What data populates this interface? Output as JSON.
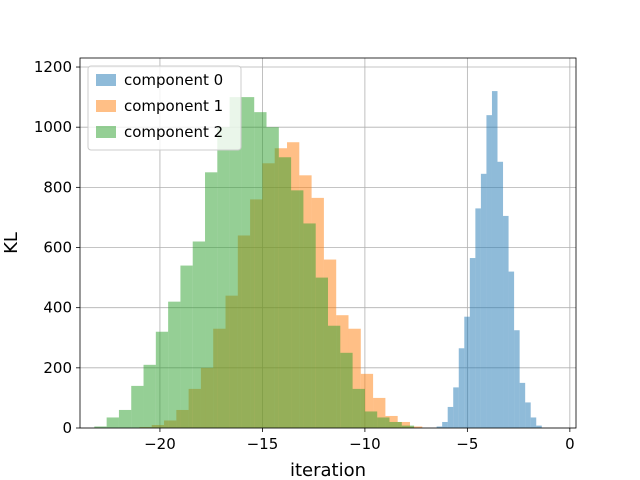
{
  "chart_data": {
    "type": "histogram",
    "xlabel": "iteration",
    "ylabel": "KL",
    "xlim": [
      -23.9,
      0.3
    ],
    "ylim": [
      0,
      1230
    ],
    "xticks": [
      -20,
      -15,
      -10,
      -5,
      0
    ],
    "xtick_labels": [
      "−20",
      "−15",
      "−10",
      "−5",
      "0"
    ],
    "yticks": [
      0,
      200,
      400,
      600,
      800,
      1000,
      1200
    ],
    "ytick_labels": [
      "0",
      "200",
      "400",
      "600",
      "800",
      "1000",
      "1200"
    ],
    "grid": true,
    "legend_position": "top-left",
    "bar_alpha": 0.5,
    "series": [
      {
        "name": "component 0",
        "color": "#1f77b4",
        "bin_width": 0.27,
        "bins": [
          {
            "x0": -6.5,
            "count": 5
          },
          {
            "x0": -6.23,
            "count": 20
          },
          {
            "x0": -5.96,
            "count": 70
          },
          {
            "x0": -5.69,
            "count": 135
          },
          {
            "x0": -5.42,
            "count": 265
          },
          {
            "x0": -5.15,
            "count": 370
          },
          {
            "x0": -4.88,
            "count": 565
          },
          {
            "x0": -4.61,
            "count": 730
          },
          {
            "x0": -4.34,
            "count": 845
          },
          {
            "x0": -4.07,
            "count": 1040
          },
          {
            "x0": -3.8,
            "count": 1120
          },
          {
            "x0": -3.53,
            "count": 885
          },
          {
            "x0": -3.26,
            "count": 705
          },
          {
            "x0": -2.99,
            "count": 520
          },
          {
            "x0": -2.72,
            "count": 325
          },
          {
            "x0": -2.45,
            "count": 150
          },
          {
            "x0": -2.18,
            "count": 85
          },
          {
            "x0": -1.91,
            "count": 35
          },
          {
            "x0": -1.64,
            "count": 8
          }
        ]
      },
      {
        "name": "component 1",
        "color": "#ff7f0e",
        "bin_width": 0.6,
        "bins": [
          {
            "x0": -21.0,
            "count": 3
          },
          {
            "x0": -20.4,
            "count": 10
          },
          {
            "x0": -19.8,
            "count": 25
          },
          {
            "x0": -19.2,
            "count": 60
          },
          {
            "x0": -18.6,
            "count": 130
          },
          {
            "x0": -18.0,
            "count": 200
          },
          {
            "x0": -17.4,
            "count": 330
          },
          {
            "x0": -16.8,
            "count": 440
          },
          {
            "x0": -16.2,
            "count": 640
          },
          {
            "x0": -15.6,
            "count": 760
          },
          {
            "x0": -15.0,
            "count": 880
          },
          {
            "x0": -14.4,
            "count": 930
          },
          {
            "x0": -13.8,
            "count": 950
          },
          {
            "x0": -13.2,
            "count": 840
          },
          {
            "x0": -12.6,
            "count": 765
          },
          {
            "x0": -12.0,
            "count": 560
          },
          {
            "x0": -11.4,
            "count": 375
          },
          {
            "x0": -10.8,
            "count": 330
          },
          {
            "x0": -10.2,
            "count": 180
          },
          {
            "x0": -9.6,
            "count": 100
          },
          {
            "x0": -9.0,
            "count": 40
          },
          {
            "x0": -8.4,
            "count": 20
          },
          {
            "x0": -7.8,
            "count": 5
          }
        ]
      },
      {
        "name": "component 2",
        "color": "#2ca02c",
        "bin_width": 0.6,
        "bins": [
          {
            "x0": -23.2,
            "count": 5
          },
          {
            "x0": -22.6,
            "count": 35
          },
          {
            "x0": -22.0,
            "count": 60
          },
          {
            "x0": -21.4,
            "count": 140
          },
          {
            "x0": -20.8,
            "count": 210
          },
          {
            "x0": -20.2,
            "count": 320
          },
          {
            "x0": -19.6,
            "count": 420
          },
          {
            "x0": -19.0,
            "count": 540
          },
          {
            "x0": -18.4,
            "count": 620
          },
          {
            "x0": -17.8,
            "count": 850
          },
          {
            "x0": -17.2,
            "count": 1000
          },
          {
            "x0": -16.6,
            "count": 1100
          },
          {
            "x0": -16.0,
            "count": 1100
          },
          {
            "x0": -15.4,
            "count": 1050
          },
          {
            "x0": -14.8,
            "count": 1000
          },
          {
            "x0": -14.2,
            "count": 900
          },
          {
            "x0": -13.6,
            "count": 790
          },
          {
            "x0": -13.0,
            "count": 680
          },
          {
            "x0": -12.4,
            "count": 500
          },
          {
            "x0": -11.8,
            "count": 340
          },
          {
            "x0": -11.2,
            "count": 250
          },
          {
            "x0": -10.6,
            "count": 130
          },
          {
            "x0": -10.0,
            "count": 55
          },
          {
            "x0": -9.4,
            "count": 35
          },
          {
            "x0": -8.8,
            "count": 20
          },
          {
            "x0": -8.2,
            "count": 8
          }
        ]
      }
    ]
  }
}
